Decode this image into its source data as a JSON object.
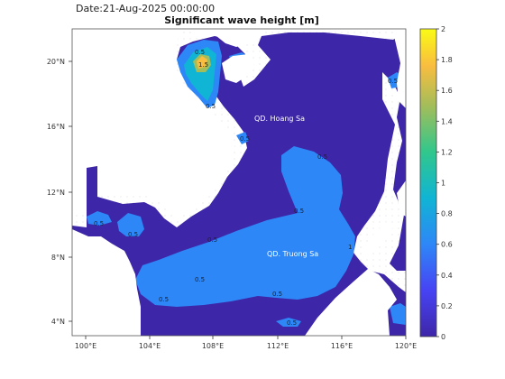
{
  "date_label": "Date:21-Aug-2025 00:00:00",
  "title": "Significant wave height [m]",
  "colorbar": {
    "ticks": [
      "0",
      "0.2",
      "0.4",
      "0.6",
      "0.8",
      "1",
      "1.2",
      "1.4",
      "1.6",
      "1.8",
      "2"
    ],
    "stops": [
      "#3e26a8",
      "#4743f4",
      "#2e87f7",
      "#10b4d4",
      "#31c78c",
      "#a3bd5a",
      "#f9bd3f",
      "#f9fb15"
    ]
  },
  "lon_ticks": [
    "100°E",
    "104°E",
    "108°E",
    "112°E",
    "116°E",
    "120°E"
  ],
  "lat_ticks": [
    "20°N",
    "16°N",
    "12°N",
    "8°N",
    "4°N"
  ],
  "places": {
    "hoang_sa": "QD. Hoang Sa",
    "truong_sa": "QD. Truong Sa"
  },
  "contour_labels": {
    "c1": "0.5",
    "c2": "1.5",
    "c3": "0.5",
    "c4": "0.5",
    "c5": "0.5",
    "c6": "0.5",
    "c7": "0.5",
    "c8": "0.5",
    "c9": "0.5",
    "c10": "0.5",
    "c11": "0.5",
    "c12": "0.5",
    "c13": "1",
    "c14": "0.5",
    "c15": "0.5"
  }
}
